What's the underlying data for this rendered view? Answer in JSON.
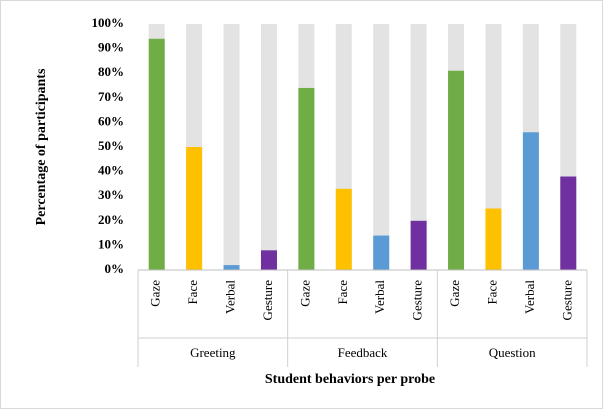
{
  "chart_data": {
    "type": "bar",
    "x_label": "Student behaviors per probe",
    "y_label": "Percentage of participants",
    "groups": [
      "Greeting",
      "Feedback",
      "Question"
    ],
    "categories": [
      "Gaze",
      "Face",
      "Verbal",
      "Gesture",
      "Gaze",
      "Face",
      "Verbal",
      "Gesture",
      "Gaze",
      "Face",
      "Verbal",
      "Gesture"
    ],
    "values": [
      94,
      50,
      2,
      8,
      74,
      33,
      14,
      20,
      81,
      25,
      56,
      38
    ],
    "colors": [
      "#70ad47",
      "#ffc000",
      "#5b9bd5",
      "#7030a0",
      "#70ad47",
      "#ffc000",
      "#5b9bd5",
      "#7030a0",
      "#70ad47",
      "#ffc000",
      "#5b9bd5",
      "#7030a0"
    ],
    "track_color": "#e3e3e3",
    "ylim": [
      0,
      100
    ],
    "yticks": [
      {
        "value": 0,
        "label": "0%"
      },
      {
        "value": 10,
        "label": "10%"
      },
      {
        "value": 20,
        "label": "20%"
      },
      {
        "value": 30,
        "label": "30%"
      },
      {
        "value": 40,
        "label": "40%"
      },
      {
        "value": 50,
        "label": "50%"
      },
      {
        "value": 60,
        "label": "60%"
      },
      {
        "value": 70,
        "label": "70%"
      },
      {
        "value": 80,
        "label": "80%"
      },
      {
        "value": 90,
        "label": "90%"
      },
      {
        "value": 100,
        "label": "100%"
      }
    ]
  }
}
